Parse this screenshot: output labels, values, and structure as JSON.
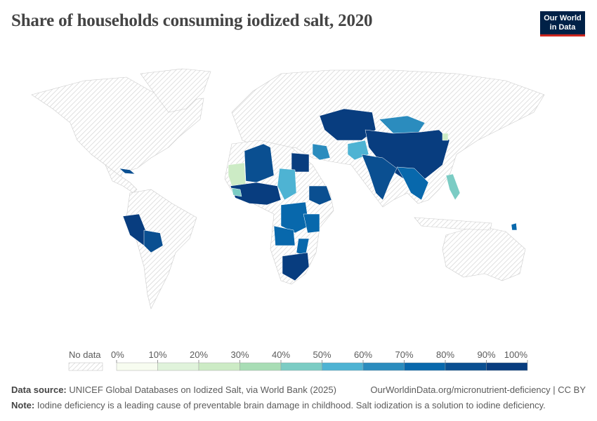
{
  "title": "Share of households consuming iodized salt, 2020",
  "logo": {
    "line1": "Our World",
    "line2": "in Data"
  },
  "legend": {
    "no_data_label": "No data",
    "ticks": [
      "0%",
      "10%",
      "20%",
      "30%",
      "40%",
      "50%",
      "60%",
      "70%",
      "80%",
      "90%",
      "100%"
    ],
    "colors": [
      "#f7fcf0",
      "#e0f3db",
      "#ccebc5",
      "#a8ddb5",
      "#7bccc4",
      "#4eb3d3",
      "#2b8cbe",
      "#0868ac",
      "#0a4f91",
      "#083d7f"
    ]
  },
  "map_colors": {
    "no_data_fill": "#ffffff",
    "hatch": "#d0d0d0",
    "border": "#cccccc"
  },
  "footer": {
    "source_label": "Data source:",
    "source": "UNICEF Global Databases on Iodized Salt, via World Bank (2025)",
    "url": "OurWorldinData.org/micronutrient-deficiency | CC BY",
    "note_label": "Note:",
    "note": "Iodine deficiency is a leading cause of preventable brain damage in childhood. Salt iodization is a solution to iodine deficiency."
  }
}
